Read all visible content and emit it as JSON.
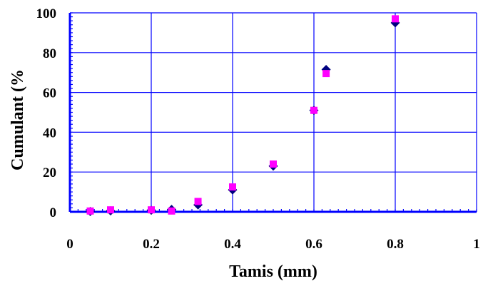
{
  "chart_data": {
    "type": "scatter",
    "title": "",
    "xlabel": "Tamis (mm)",
    "ylabel": "Cumulant (%",
    "xlim": [
      0,
      1
    ],
    "ylim": [
      0,
      100
    ],
    "x_ticks": [
      "0",
      "0.2",
      "0.4",
      "0.6",
      "0.8",
      "1"
    ],
    "y_ticks": [
      "0",
      "20",
      "40",
      "60",
      "80",
      "100"
    ],
    "grid": true,
    "legend": "none",
    "series": [
      {
        "marker": "diamond",
        "color": "#000080",
        "x": [
          0.05,
          0.1,
          0.2,
          0.25,
          0.315,
          0.4,
          0.5,
          0.6,
          0.63,
          0.8
        ],
        "y": [
          0.2,
          0.5,
          0.8,
          1.2,
          3.5,
          11,
          23,
          51,
          71.5,
          95
        ]
      },
      {
        "marker": "square",
        "color": "#FF00FF",
        "x": [
          0.05,
          0.1,
          0.2,
          0.25,
          0.315,
          0.4,
          0.5,
          0.6,
          0.63,
          0.8
        ],
        "y": [
          0.4,
          1.0,
          1.0,
          0.4,
          5.2,
          12.5,
          24,
          51,
          69.5,
          97
        ]
      }
    ]
  },
  "colors": {
    "axis": "#0000FF",
    "grid": "#0000FF",
    "background": "#FFFFFF"
  }
}
